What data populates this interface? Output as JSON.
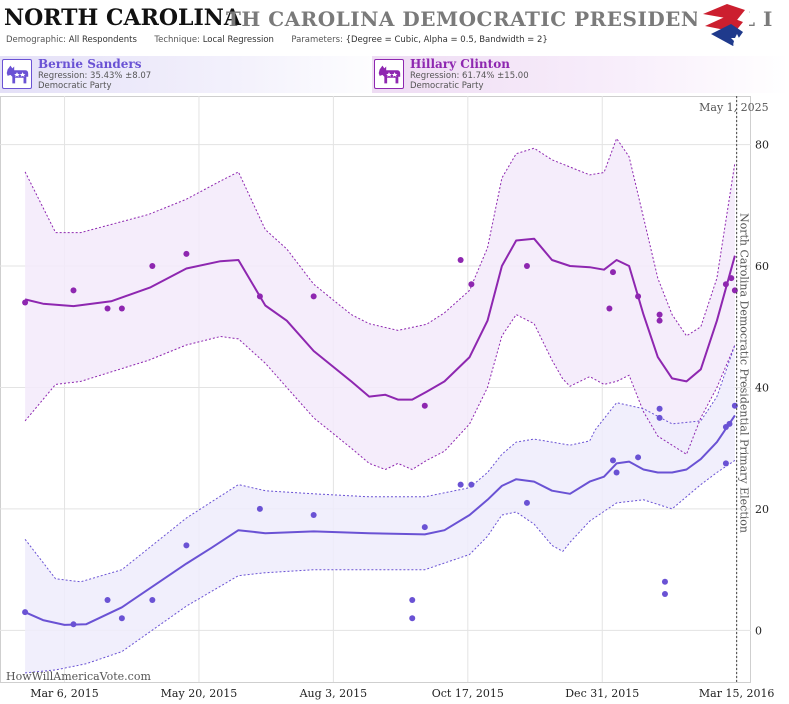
{
  "header": {
    "state": "NORTH CAROLINA",
    "title": "TH CAROLINA DEMOCRATIC PRESIDENTIAL I",
    "demographic_key": "Demographic:",
    "demographic": "All Respondents",
    "technique_key": "Technique:",
    "technique": "Local Regression",
    "parameters_key": "Parameters:",
    "parameters": "{Degree = Cubic, Alpha = 0.5, Bandwidth = 2}"
  },
  "candidates": [
    {
      "name": "Bernie Sanders",
      "regression": "Regression: 35.43% ±8.07",
      "party": "Democratic Party",
      "color": "#6a52d4"
    },
    {
      "name": "Hillary Clinton",
      "regression": "Regression: 61.74% ±15.00",
      "party": "Democratic Party",
      "color": "#8e27b0"
    }
  ],
  "icon_names": [
    "democratic-donkey-icon",
    "flag-logo-icon"
  ],
  "watermark": "HowWillAmericaVote.com",
  "election_label": "North Carolina Democratic Presidential Primary Election",
  "current_date_label": "May 1, 2025",
  "chart_data": {
    "type": "scatter",
    "x_tick_labels": [
      "Mar 6, 2015",
      "May 20, 2015",
      "Aug 3, 2015",
      "Oct 17, 2015",
      "Dec 31, 2015",
      "Mar 15, 2016"
    ],
    "x_tick_dates": [
      "2015-03-06",
      "2015-05-20",
      "2015-08-03",
      "2015-10-17",
      "2015-12-31",
      "2016-03-15"
    ],
    "xlim": [
      "2015-01-29",
      "2016-03-23"
    ],
    "y_ticks": [
      0,
      20,
      40,
      60,
      80
    ],
    "ylim": [
      -8.5,
      88
    ],
    "grid": true,
    "series": [
      {
        "name": "Hillary Clinton",
        "color": "#8e27b0",
        "points": [
          {
            "x": "2015-02-12",
            "y": 54
          },
          {
            "x": "2015-03-11",
            "y": 56
          },
          {
            "x": "2015-03-30",
            "y": 53
          },
          {
            "x": "2015-04-07",
            "y": 53
          },
          {
            "x": "2015-04-24",
            "y": 60
          },
          {
            "x": "2015-05-13",
            "y": 62
          },
          {
            "x": "2015-06-23",
            "y": 55
          },
          {
            "x": "2015-07-23",
            "y": 55
          },
          {
            "x": "2015-09-23",
            "y": 37
          },
          {
            "x": "2015-10-13",
            "y": 61
          },
          {
            "x": "2015-10-19",
            "y": 57
          },
          {
            "x": "2015-11-19",
            "y": 60
          },
          {
            "x": "2016-01-04",
            "y": 53
          },
          {
            "x": "2016-01-06",
            "y": 59
          },
          {
            "x": "2016-01-20",
            "y": 55
          },
          {
            "x": "2016-02-01",
            "y": 52
          },
          {
            "x": "2016-02-01",
            "y": 51
          },
          {
            "x": "2016-03-09",
            "y": 57
          },
          {
            "x": "2016-03-12",
            "y": 58
          },
          {
            "x": "2016-03-14",
            "y": 56
          }
        ],
        "trend": [
          {
            "x": "2015-02-12",
            "y": 54.5
          },
          {
            "x": "2015-02-22",
            "y": 53.8
          },
          {
            "x": "2015-03-11",
            "y": 53.4
          },
          {
            "x": "2015-04-01",
            "y": 54.2
          },
          {
            "x": "2015-04-23",
            "y": 56.5
          },
          {
            "x": "2015-05-13",
            "y": 59.6
          },
          {
            "x": "2015-06-01",
            "y": 60.8
          },
          {
            "x": "2015-06-11",
            "y": 61
          },
          {
            "x": "2015-06-26",
            "y": 53.5
          },
          {
            "x": "2015-07-08",
            "y": 51
          },
          {
            "x": "2015-07-23",
            "y": 46
          },
          {
            "x": "2015-08-13",
            "y": 41
          },
          {
            "x": "2015-08-23",
            "y": 38.5
          },
          {
            "x": "2015-09-01",
            "y": 38.8
          },
          {
            "x": "2015-09-08",
            "y": 38
          },
          {
            "x": "2015-09-16",
            "y": 38
          },
          {
            "x": "2015-09-24",
            "y": 39.3
          },
          {
            "x": "2015-10-04",
            "y": 41
          },
          {
            "x": "2015-10-18",
            "y": 45
          },
          {
            "x": "2015-10-28",
            "y": 51
          },
          {
            "x": "2015-11-05",
            "y": 60
          },
          {
            "x": "2015-11-13",
            "y": 64.2
          },
          {
            "x": "2015-11-23",
            "y": 64.5
          },
          {
            "x": "2015-12-03",
            "y": 61
          },
          {
            "x": "2015-12-13",
            "y": 60
          },
          {
            "x": "2015-12-24",
            "y": 59.8
          },
          {
            "x": "2016-01-01",
            "y": 59.4
          },
          {
            "x": "2016-01-08",
            "y": 61
          },
          {
            "x": "2016-01-15",
            "y": 60
          },
          {
            "x": "2016-01-23",
            "y": 52
          },
          {
            "x": "2016-01-31",
            "y": 45
          },
          {
            "x": "2016-02-08",
            "y": 41.5
          },
          {
            "x": "2016-02-16",
            "y": 41
          },
          {
            "x": "2016-02-24",
            "y": 43
          },
          {
            "x": "2016-03-04",
            "y": 51
          },
          {
            "x": "2016-03-14",
            "y": 61.7
          }
        ],
        "upper": [
          {
            "x": "2015-02-12",
            "y": 75.5
          },
          {
            "x": "2015-03-01",
            "y": 65.5
          },
          {
            "x": "2015-03-15",
            "y": 65.5
          },
          {
            "x": "2015-04-22",
            "y": 68.5
          },
          {
            "x": "2015-05-13",
            "y": 71
          },
          {
            "x": "2015-06-01",
            "y": 74
          },
          {
            "x": "2015-06-11",
            "y": 75.5
          },
          {
            "x": "2015-06-26",
            "y": 66
          },
          {
            "x": "2015-07-08",
            "y": 62.8
          },
          {
            "x": "2015-07-23",
            "y": 57
          },
          {
            "x": "2015-08-13",
            "y": 52
          },
          {
            "x": "2015-08-23",
            "y": 50.5
          },
          {
            "x": "2015-09-08",
            "y": 49.4
          },
          {
            "x": "2015-09-24",
            "y": 50.4
          },
          {
            "x": "2015-10-04",
            "y": 52.3
          },
          {
            "x": "2015-10-18",
            "y": 56
          },
          {
            "x": "2015-10-28",
            "y": 63
          },
          {
            "x": "2015-11-05",
            "y": 74.5
          },
          {
            "x": "2015-11-13",
            "y": 78.5
          },
          {
            "x": "2015-11-23",
            "y": 79.4
          },
          {
            "x": "2015-12-03",
            "y": 77.5
          },
          {
            "x": "2015-12-13",
            "y": 76.3
          },
          {
            "x": "2015-12-24",
            "y": 75
          },
          {
            "x": "2016-01-01",
            "y": 75.4
          },
          {
            "x": "2016-01-08",
            "y": 81
          },
          {
            "x": "2016-01-15",
            "y": 78
          },
          {
            "x": "2016-01-23",
            "y": 68
          },
          {
            "x": "2016-01-31",
            "y": 58
          },
          {
            "x": "2016-02-08",
            "y": 52
          },
          {
            "x": "2016-02-16",
            "y": 48.5
          },
          {
            "x": "2016-02-24",
            "y": 50
          },
          {
            "x": "2016-03-04",
            "y": 58
          },
          {
            "x": "2016-03-14",
            "y": 77
          }
        ],
        "lower": [
          {
            "x": "2015-02-12",
            "y": 34.5
          },
          {
            "x": "2015-03-01",
            "y": 40.5
          },
          {
            "x": "2015-03-15",
            "y": 41
          },
          {
            "x": "2015-04-22",
            "y": 44.5
          },
          {
            "x": "2015-05-13",
            "y": 47
          },
          {
            "x": "2015-06-01",
            "y": 48.4
          },
          {
            "x": "2015-06-11",
            "y": 48
          },
          {
            "x": "2015-06-26",
            "y": 44
          },
          {
            "x": "2015-07-08",
            "y": 40
          },
          {
            "x": "2015-07-23",
            "y": 35
          },
          {
            "x": "2015-08-13",
            "y": 30
          },
          {
            "x": "2015-08-23",
            "y": 27.5
          },
          {
            "x": "2015-09-01",
            "y": 26.5
          },
          {
            "x": "2015-09-08",
            "y": 27.5
          },
          {
            "x": "2015-09-16",
            "y": 26.5
          },
          {
            "x": "2015-09-24",
            "y": 28
          },
          {
            "x": "2015-10-04",
            "y": 29.5
          },
          {
            "x": "2015-10-18",
            "y": 34
          },
          {
            "x": "2015-10-28",
            "y": 40
          },
          {
            "x": "2015-11-05",
            "y": 48.5
          },
          {
            "x": "2015-11-13",
            "y": 52
          },
          {
            "x": "2015-11-23",
            "y": 50.5
          },
          {
            "x": "2015-12-03",
            "y": 44.5
          },
          {
            "x": "2015-12-09",
            "y": 41.4
          },
          {
            "x": "2015-12-13",
            "y": 40.2
          },
          {
            "x": "2015-12-24",
            "y": 41.8
          },
          {
            "x": "2016-01-01",
            "y": 40.5
          },
          {
            "x": "2016-01-08",
            "y": 41
          },
          {
            "x": "2016-01-15",
            "y": 42
          },
          {
            "x": "2016-01-23",
            "y": 36
          },
          {
            "x": "2016-01-31",
            "y": 32
          },
          {
            "x": "2016-02-08",
            "y": 30.5
          },
          {
            "x": "2016-02-16",
            "y": 29
          },
          {
            "x": "2016-02-24",
            "y": 35
          },
          {
            "x": "2016-03-04",
            "y": 40
          },
          {
            "x": "2016-03-14",
            "y": 47
          }
        ]
      },
      {
        "name": "Bernie Sanders",
        "color": "#6a52d4",
        "points": [
          {
            "x": "2015-02-12",
            "y": 3
          },
          {
            "x": "2015-03-11",
            "y": 1
          },
          {
            "x": "2015-03-30",
            "y": 5
          },
          {
            "x": "2015-04-07",
            "y": 2
          },
          {
            "x": "2015-04-24",
            "y": 5
          },
          {
            "x": "2015-05-13",
            "y": 14
          },
          {
            "x": "2015-06-23",
            "y": 20
          },
          {
            "x": "2015-07-23",
            "y": 19
          },
          {
            "x": "2015-09-16",
            "y": 5
          },
          {
            "x": "2015-09-16",
            "y": 2
          },
          {
            "x": "2015-09-23",
            "y": 17
          },
          {
            "x": "2015-10-13",
            "y": 24
          },
          {
            "x": "2015-10-19",
            "y": 24
          },
          {
            "x": "2015-11-19",
            "y": 21
          },
          {
            "x": "2016-01-06",
            "y": 28
          },
          {
            "x": "2016-01-08",
            "y": 26
          },
          {
            "x": "2016-01-20",
            "y": 28.5
          },
          {
            "x": "2016-02-01",
            "y": 36.5
          },
          {
            "x": "2016-02-01",
            "y": 35
          },
          {
            "x": "2016-02-04",
            "y": 8
          },
          {
            "x": "2016-02-04",
            "y": 6
          },
          {
            "x": "2016-03-09",
            "y": 27.5
          },
          {
            "x": "2016-03-09",
            "y": 33.5
          },
          {
            "x": "2016-03-11",
            "y": 34
          },
          {
            "x": "2016-03-14",
            "y": 37
          }
        ],
        "trend": [
          {
            "x": "2015-02-12",
            "y": 3
          },
          {
            "x": "2015-02-22",
            "y": 1.7
          },
          {
            "x": "2015-03-06",
            "y": 0.9
          },
          {
            "x": "2015-03-18",
            "y": 1
          },
          {
            "x": "2015-04-07",
            "y": 3.8
          },
          {
            "x": "2015-04-28",
            "y": 8
          },
          {
            "x": "2015-05-13",
            "y": 11
          },
          {
            "x": "2015-05-27",
            "y": 13.6
          },
          {
            "x": "2015-06-11",
            "y": 16.5
          },
          {
            "x": "2015-06-26",
            "y": 16
          },
          {
            "x": "2015-07-23",
            "y": 16.3
          },
          {
            "x": "2015-08-23",
            "y": 16
          },
          {
            "x": "2015-09-23",
            "y": 15.8
          },
          {
            "x": "2015-10-04",
            "y": 16.5
          },
          {
            "x": "2015-10-18",
            "y": 19
          },
          {
            "x": "2015-10-28",
            "y": 21.5
          },
          {
            "x": "2015-11-05",
            "y": 23.8
          },
          {
            "x": "2015-11-13",
            "y": 24.9
          },
          {
            "x": "2015-11-23",
            "y": 24.5
          },
          {
            "x": "2015-12-03",
            "y": 23
          },
          {
            "x": "2015-12-13",
            "y": 22.5
          },
          {
            "x": "2015-12-24",
            "y": 24.5
          },
          {
            "x": "2016-01-01",
            "y": 25.3
          },
          {
            "x": "2016-01-08",
            "y": 27.5
          },
          {
            "x": "2016-01-15",
            "y": 27.8
          },
          {
            "x": "2016-01-23",
            "y": 26.5
          },
          {
            "x": "2016-01-31",
            "y": 26
          },
          {
            "x": "2016-02-08",
            "y": 26
          },
          {
            "x": "2016-02-16",
            "y": 26.5
          },
          {
            "x": "2016-02-24",
            "y": 28.2
          },
          {
            "x": "2016-03-04",
            "y": 31
          },
          {
            "x": "2016-03-14",
            "y": 35.4
          }
        ],
        "upper": [
          {
            "x": "2015-02-12",
            "y": 15
          },
          {
            "x": "2015-03-01",
            "y": 8.5
          },
          {
            "x": "2015-03-15",
            "y": 8
          },
          {
            "x": "2015-04-07",
            "y": 10
          },
          {
            "x": "2015-05-13",
            "y": 18.5
          },
          {
            "x": "2015-06-11",
            "y": 24
          },
          {
            "x": "2015-06-26",
            "y": 23
          },
          {
            "x": "2015-07-23",
            "y": 22.5
          },
          {
            "x": "2015-08-23",
            "y": 22
          },
          {
            "x": "2015-09-23",
            "y": 22
          },
          {
            "x": "2015-10-18",
            "y": 23.5
          },
          {
            "x": "2015-10-28",
            "y": 26
          },
          {
            "x": "2015-11-05",
            "y": 29
          },
          {
            "x": "2015-11-13",
            "y": 31
          },
          {
            "x": "2015-11-23",
            "y": 31.5
          },
          {
            "x": "2015-12-03",
            "y": 31
          },
          {
            "x": "2015-12-13",
            "y": 30.5
          },
          {
            "x": "2015-12-24",
            "y": 31.2
          },
          {
            "x": "2015-12-27",
            "y": 33
          },
          {
            "x": "2016-01-08",
            "y": 37.5
          },
          {
            "x": "2016-01-23",
            "y": 36.5
          },
          {
            "x": "2016-02-08",
            "y": 34
          },
          {
            "x": "2016-02-24",
            "y": 34.5
          },
          {
            "x": "2016-03-04",
            "y": 38.5
          },
          {
            "x": "2016-03-14",
            "y": 47
          }
        ],
        "lower": [
          {
            "x": "2015-02-12",
            "y": -7
          },
          {
            "x": "2015-03-01",
            "y": -6.5
          },
          {
            "x": "2015-03-18",
            "y": -5.5
          },
          {
            "x": "2015-04-07",
            "y": -3.5
          },
          {
            "x": "2015-05-13",
            "y": 4
          },
          {
            "x": "2015-06-11",
            "y": 9
          },
          {
            "x": "2015-06-26",
            "y": 9.5
          },
          {
            "x": "2015-07-23",
            "y": 10
          },
          {
            "x": "2015-08-23",
            "y": 10
          },
          {
            "x": "2015-09-23",
            "y": 10
          },
          {
            "x": "2015-10-18",
            "y": 12.5
          },
          {
            "x": "2015-10-28",
            "y": 15.5
          },
          {
            "x": "2015-11-05",
            "y": 19
          },
          {
            "x": "2015-11-13",
            "y": 19.5
          },
          {
            "x": "2015-11-23",
            "y": 17.5
          },
          {
            "x": "2015-12-03",
            "y": 14
          },
          {
            "x": "2015-12-09",
            "y": 13
          },
          {
            "x": "2015-12-13",
            "y": 14.5
          },
          {
            "x": "2015-12-24",
            "y": 18
          },
          {
            "x": "2016-01-08",
            "y": 21
          },
          {
            "x": "2016-01-23",
            "y": 21.5
          },
          {
            "x": "2016-02-08",
            "y": 20
          },
          {
            "x": "2016-02-24",
            "y": 24
          },
          {
            "x": "2016-03-04",
            "y": 26
          },
          {
            "x": "2016-03-14",
            "y": 28
          }
        ]
      }
    ],
    "vertical_marker": {
      "x": "2016-03-15",
      "label": "May 1, 2025"
    }
  }
}
